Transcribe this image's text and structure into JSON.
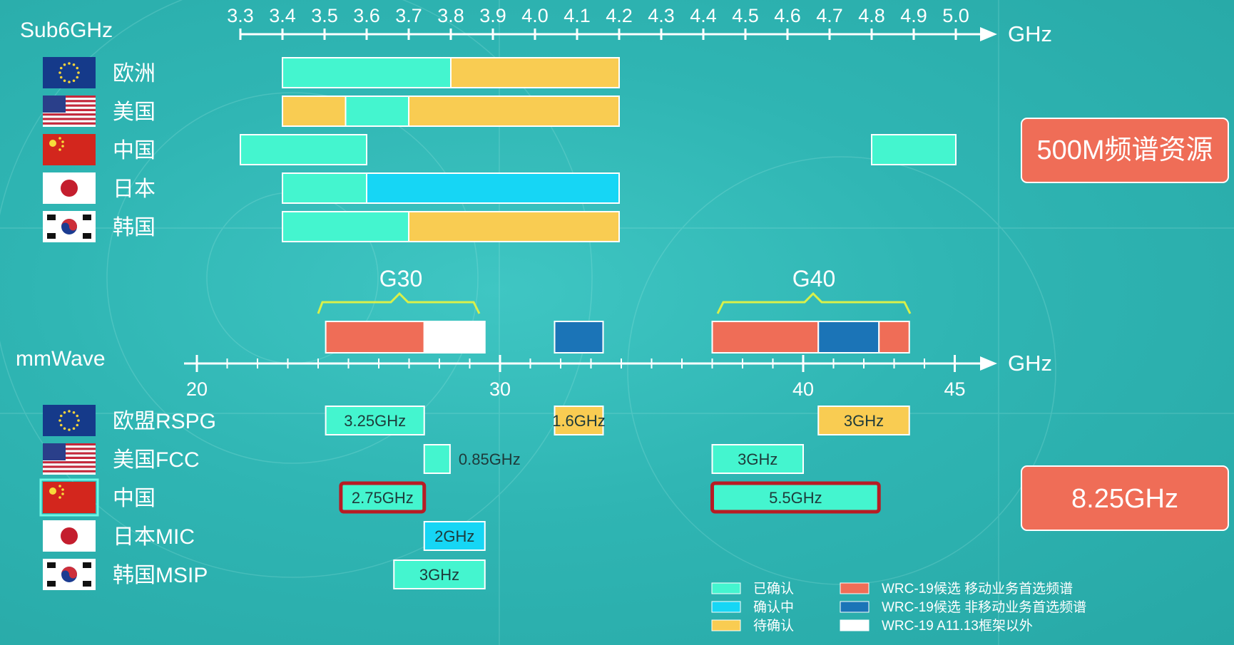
{
  "colors": {
    "confirmed": "#44f5cf",
    "confirming": "#16d6f5",
    "pending": "#f9cc52",
    "wrc_mobile": "#ef6d57",
    "wrc_nonmobile": "#1b74b7",
    "wrc_other": "#ffffff",
    "highlight_border": "#b71c24",
    "callout_bg": "#ef6d57"
  },
  "sub6": {
    "title": "Sub6GHz",
    "unit": "GHz",
    "ticks": [
      "3.3",
      "3.4",
      "3.5",
      "3.6",
      "3.7",
      "3.8",
      "3.9",
      "4.0",
      "4.1",
      "4.2",
      "4.3",
      "4.4",
      "4.5",
      "4.6",
      "4.7",
      "4.8",
      "4.9",
      "5.0"
    ],
    "callout": "500M频谱资源"
  },
  "mmwave": {
    "title": "mmWave",
    "unit": "GHz",
    "ticks": [
      "20",
      "30",
      "40",
      "45"
    ],
    "callout": "8.25GHz",
    "groups": [
      "G30",
      "G40"
    ]
  },
  "legend": {
    "confirmed": "已确认",
    "confirming": "确认中",
    "pending": "待确认",
    "wrc_mobile": "WRC-19候选 移动业务首选频谱",
    "wrc_nonmobile": "WRC-19候选 非移动业务首选频谱",
    "wrc_other": "WRC-19 A11.13框架以外"
  },
  "chart_data": [
    {
      "type": "range-bar",
      "title": "Sub6GHz",
      "xlabel": "GHz",
      "xlim": [
        3.3,
        5.0
      ],
      "rows": [
        {
          "country": "欧洲",
          "flag": "eu-flag",
          "bands": [
            {
              "start": 3.4,
              "end": 3.8,
              "status": "confirmed"
            },
            {
              "start": 3.8,
              "end": 4.2,
              "status": "pending"
            }
          ]
        },
        {
          "country": "美国",
          "flag": "us-flag",
          "bands": [
            {
              "start": 3.4,
              "end": 3.55,
              "status": "pending"
            },
            {
              "start": 3.55,
              "end": 3.7,
              "status": "confirmed"
            },
            {
              "start": 3.7,
              "end": 4.2,
              "status": "pending"
            }
          ]
        },
        {
          "country": "中国",
          "flag": "cn-flag",
          "bands": [
            {
              "start": 3.3,
              "end": 3.6,
              "status": "confirmed"
            },
            {
              "start": 4.8,
              "end": 5.0,
              "status": "confirmed"
            }
          ]
        },
        {
          "country": "日本",
          "flag": "jp-flag",
          "bands": [
            {
              "start": 3.4,
              "end": 3.6,
              "status": "confirmed"
            },
            {
              "start": 3.6,
              "end": 4.2,
              "status": "confirming"
            }
          ]
        },
        {
          "country": "韩国",
          "flag": "kr-flag",
          "bands": [
            {
              "start": 3.4,
              "end": 3.7,
              "status": "confirmed"
            },
            {
              "start": 3.7,
              "end": 4.2,
              "status": "pending"
            }
          ]
        }
      ]
    },
    {
      "type": "range-bar",
      "title": "mmWave",
      "xlabel": "GHz",
      "xlim": [
        20,
        45
      ],
      "wrc_bands": [
        {
          "start": 24.25,
          "end": 27.5,
          "status": "wrc_mobile"
        },
        {
          "start": 27.5,
          "end": 29.5,
          "status": "wrc_other"
        },
        {
          "start": 31.8,
          "end": 33.4,
          "status": "wrc_nonmobile"
        },
        {
          "start": 37.0,
          "end": 40.5,
          "status": "wrc_mobile"
        },
        {
          "start": 40.5,
          "end": 42.5,
          "status": "wrc_nonmobile"
        },
        {
          "start": 42.5,
          "end": 43.5,
          "status": "wrc_mobile"
        }
      ],
      "rows": [
        {
          "country": "欧盟RSPG",
          "flag": "eu-flag",
          "bands": [
            {
              "start": 24.25,
              "end": 27.5,
              "status": "confirmed",
              "label": "3.25GHz"
            },
            {
              "start": 31.8,
              "end": 33.4,
              "status": "pending",
              "label": "1.6GHz"
            },
            {
              "start": 40.5,
              "end": 43.5,
              "status": "pending",
              "label": "3GHz"
            }
          ]
        },
        {
          "country": "美国FCC",
          "flag": "us-flag",
          "bands": [
            {
              "start": 27.5,
              "end": 28.35,
              "status": "confirmed",
              "label": "0.85GHz",
              "label_outside": true
            },
            {
              "start": 37.0,
              "end": 40.0,
              "status": "confirmed",
              "label": "3GHz"
            }
          ]
        },
        {
          "country": "中国",
          "flag": "cn-flag",
          "highlight": true,
          "bands": [
            {
              "start": 24.75,
              "end": 27.5,
              "status": "confirmed",
              "label": "2.75GHz",
              "highlight": true
            },
            {
              "start": 37.0,
              "end": 42.5,
              "status": "confirmed",
              "label": "5.5GHz",
              "highlight": true
            }
          ]
        },
        {
          "country": "日本MIC",
          "flag": "jp-flag",
          "bands": [
            {
              "start": 27.5,
              "end": 29.5,
              "status": "confirming",
              "label": "2GHz"
            }
          ]
        },
        {
          "country": "韩国MSIP",
          "flag": "kr-flag",
          "bands": [
            {
              "start": 26.5,
              "end": 29.5,
              "status": "confirmed",
              "label": "3GHz"
            }
          ]
        }
      ]
    }
  ]
}
